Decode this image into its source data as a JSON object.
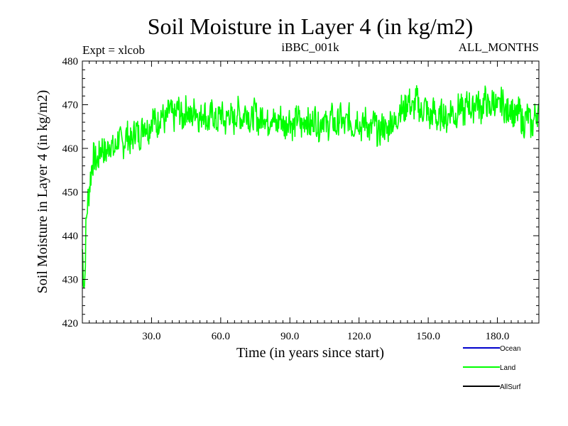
{
  "chart_data": {
    "type": "line",
    "title": "Soil Moisture in Layer 4 (in kg/m2)",
    "subtitle_left": "Expt = xlcob",
    "subtitle_center": "iBBC_001k",
    "subtitle_right": "ALL_MONTHS",
    "xlabel": "Time (in years since start)",
    "ylabel": "Soil Moisture in Layer 4 (in kg/m2)",
    "xlim": [
      0,
      198
    ],
    "ylim": [
      420,
      480
    ],
    "x_ticks": [
      30,
      60,
      90,
      120,
      150,
      180
    ],
    "x_tick_labels": [
      "30.0",
      "60.0",
      "90.0",
      "120.0",
      "150.0",
      "180.0"
    ],
    "y_ticks": [
      420,
      430,
      440,
      450,
      460,
      470,
      480
    ],
    "y_tick_labels": [
      "420",
      "430",
      "440",
      "450",
      "460",
      "470",
      "480"
    ],
    "legend": [
      {
        "name": "Ocean",
        "color": "#0000cc"
      },
      {
        "name": "Land",
        "color": "#00ff00"
      },
      {
        "name": "AllSurf",
        "color": "#000000"
      }
    ],
    "series": [
      {
        "name": "Land",
        "color": "#00ff00",
        "x": [
          0,
          0.5,
          1,
          1.5,
          2,
          2.5,
          3,
          4,
          5,
          6,
          8,
          10,
          12,
          15,
          18,
          20,
          25,
          30,
          35,
          40,
          45,
          50,
          55,
          60,
          65,
          70,
          75,
          80,
          85,
          90,
          95,
          100,
          105,
          110,
          115,
          120,
          125,
          130,
          135,
          140,
          145,
          150,
          155,
          160,
          165,
          170,
          175,
          180,
          185,
          190,
          195,
          198
        ],
        "y": [
          437,
          430,
          427,
          440,
          446,
          450,
          452,
          455,
          457,
          458,
          459,
          460,
          460,
          461,
          462,
          462,
          464,
          466,
          467,
          468,
          468,
          468,
          467,
          467,
          467,
          468,
          467,
          467,
          466,
          466,
          466,
          466,
          466,
          466,
          466,
          466,
          465,
          464,
          466,
          470,
          470,
          468,
          467,
          468,
          469,
          470,
          470,
          470,
          469,
          467,
          466,
          468
        ]
      }
    ]
  }
}
